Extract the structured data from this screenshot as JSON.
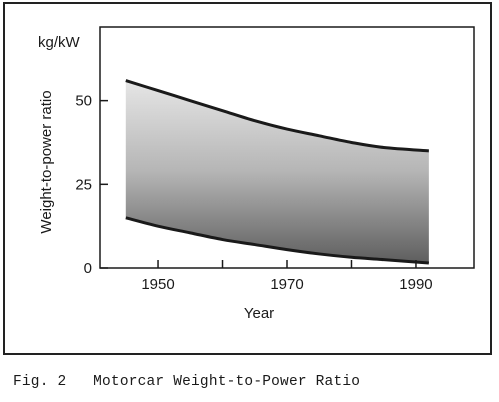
{
  "chart_data": {
    "type": "area",
    "title": "",
    "xlabel": "Year",
    "ylabel": "Weight-to-power ratio",
    "y_unit": "kg/kW",
    "xlim": [
      1941,
      1999
    ],
    "ylim": [
      0,
      72
    ],
    "x_ticks": [
      1950,
      1960,
      1970,
      1980,
      1990
    ],
    "x_tick_labels": [
      "1950",
      "1970",
      "1990"
    ],
    "y_ticks": [
      0,
      25,
      50
    ],
    "grid": false,
    "series": [
      {
        "x": [
          1945,
          1950,
          1955,
          1960,
          1965,
          1970,
          1975,
          1980,
          1985,
          1992
        ],
        "upper": [
          56,
          53,
          50,
          47,
          44,
          41.5,
          39.5,
          37.5,
          36,
          35
        ],
        "lower": [
          15,
          12.5,
          10.5,
          8.5,
          7,
          5.5,
          4.2,
          3.2,
          2.5,
          1.5
        ]
      }
    ]
  },
  "caption": "Fig. 2   Motorcar Weight-to-Power Ratio"
}
